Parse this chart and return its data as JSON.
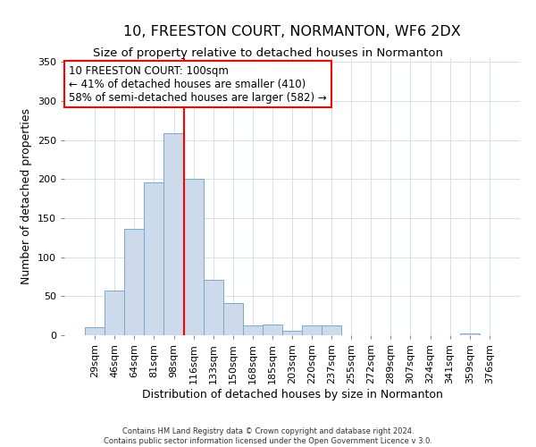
{
  "title": "10, FREESTON COURT, NORMANTON, WF6 2DX",
  "subtitle": "Size of property relative to detached houses in Normanton",
  "xlabel": "Distribution of detached houses by size in Normanton",
  "ylabel": "Number of detached properties",
  "footer_line1": "Contains HM Land Registry data © Crown copyright and database right 2024.",
  "footer_line2": "Contains public sector information licensed under the Open Government Licence v 3.0.",
  "bar_labels": [
    "29sqm",
    "46sqm",
    "64sqm",
    "81sqm",
    "98sqm",
    "116sqm",
    "133sqm",
    "150sqm",
    "168sqm",
    "185sqm",
    "203sqm",
    "220sqm",
    "237sqm",
    "255sqm",
    "272sqm",
    "289sqm",
    "307sqm",
    "324sqm",
    "341sqm",
    "359sqm",
    "376sqm"
  ],
  "bar_values": [
    10,
    57,
    136,
    196,
    259,
    200,
    71,
    41,
    13,
    14,
    6,
    13,
    13,
    0,
    0,
    0,
    0,
    0,
    0,
    2,
    0
  ],
  "bar_color": "#ccdaeb",
  "bar_edge_color": "#7aa8cc",
  "vline_x": 4.5,
  "vline_color": "red",
  "annotation_title": "10 FREESTON COURT: 100sqm",
  "annotation_line2": "← 41% of detached houses are smaller (410)",
  "annotation_line3": "58% of semi-detached houses are larger (582) →",
  "annotation_box_color": "red",
  "ylim": [
    0,
    355
  ],
  "yticks": [
    0,
    50,
    100,
    150,
    200,
    250,
    300,
    350
  ],
  "title_fontsize": 11.5,
  "subtitle_fontsize": 9.5,
  "annotation_fontsize": 8.5,
  "axis_label_fontsize": 9,
  "tick_fontsize": 8,
  "footer_fontsize": 6
}
